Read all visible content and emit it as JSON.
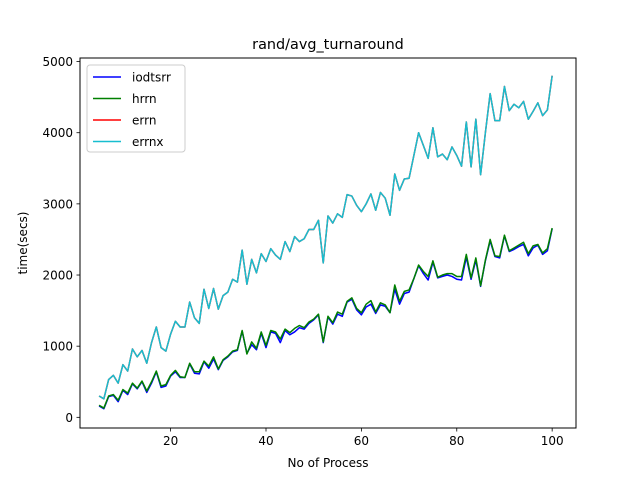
{
  "chart_data": {
    "type": "line",
    "title": "rand/avg_turnaround",
    "xlabel": "No of Process",
    "ylabel": "time(secs)",
    "xlim": [
      1,
      105
    ],
    "ylim": [
      -150,
      5050
    ],
    "xticks": [
      20,
      40,
      60,
      80,
      100
    ],
    "yticks": [
      0,
      1000,
      2000,
      3000,
      4000,
      5000
    ],
    "grid": false,
    "legend_position": "top-left",
    "x": [
      5,
      6,
      7,
      8,
      9,
      10,
      11,
      12,
      13,
      14,
      15,
      16,
      17,
      18,
      19,
      20,
      21,
      22,
      23,
      24,
      25,
      26,
      27,
      28,
      29,
      30,
      31,
      32,
      33,
      34,
      35,
      36,
      37,
      38,
      39,
      40,
      41,
      42,
      43,
      44,
      45,
      46,
      47,
      48,
      49,
      50,
      51,
      52,
      53,
      54,
      55,
      56,
      57,
      58,
      59,
      60,
      61,
      62,
      63,
      64,
      65,
      66,
      67,
      68,
      69,
      70,
      71,
      72,
      73,
      74,
      75,
      76,
      77,
      78,
      79,
      80,
      81,
      82,
      83,
      84,
      85,
      86,
      87,
      88,
      89,
      90,
      91,
      92,
      93,
      94,
      95,
      96,
      97,
      98,
      99,
      100
    ],
    "series": [
      {
        "name": "iodtsrr",
        "color": "#0000ff",
        "values": [
          160,
          120,
          290,
          310,
          220,
          380,
          320,
          470,
          400,
          500,
          350,
          480,
          640,
          420,
          440,
          580,
          640,
          560,
          560,
          750,
          620,
          610,
          780,
          690,
          820,
          670,
          800,
          850,
          920,
          940,
          1210,
          900,
          1020,
          950,
          1180,
          980,
          1200,
          1180,
          1050,
          1220,
          1160,
          1200,
          1260,
          1240,
          1320,
          1370,
          1440,
          1050,
          1410,
          1310,
          1450,
          1420,
          1620,
          1660,
          1510,
          1440,
          1550,
          1590,
          1460,
          1580,
          1560,
          1470,
          1800,
          1590,
          1740,
          1760,
          1950,
          2130,
          2020,
          1930,
          2180,
          1960,
          1980,
          2000,
          1980,
          1940,
          1930,
          2250,
          1940,
          2210,
          1840,
          2200,
          2480,
          2260,
          2240,
          2550,
          2330,
          2360,
          2400,
          2430,
          2270,
          2380,
          2420,
          2290,
          2340,
          2650
        ]
      },
      {
        "name": "hrrn",
        "color": "#008000",
        "values": [
          170,
          130,
          300,
          320,
          240,
          390,
          340,
          480,
          410,
          510,
          370,
          500,
          650,
          440,
          460,
          590,
          660,
          570,
          560,
          760,
          640,
          640,
          790,
          720,
          850,
          680,
          810,
          860,
          930,
          950,
          1220,
          890,
          1060,
          970,
          1200,
          1010,
          1220,
          1200,
          1100,
          1240,
          1190,
          1250,
          1290,
          1260,
          1340,
          1380,
          1450,
          1060,
          1420,
          1330,
          1480,
          1450,
          1630,
          1680,
          1530,
          1470,
          1590,
          1640,
          1480,
          1610,
          1580,
          1470,
          1860,
          1630,
          1770,
          1790,
          1950,
          2140,
          2050,
          1980,
          2200,
          1970,
          2000,
          2020,
          2020,
          1980,
          1980,
          2290,
          1960,
          2240,
          1850,
          2210,
          2500,
          2270,
          2260,
          2560,
          2340,
          2380,
          2420,
          2460,
          2300,
          2410,
          2430,
          2310,
          2370,
          2660
        ]
      },
      {
        "name": "errn",
        "color": "#ff0000",
        "values": [
          300,
          260,
          530,
          590,
          480,
          740,
          650,
          960,
          850,
          940,
          760,
          1050,
          1270,
          980,
          930,
          1170,
          1350,
          1270,
          1270,
          1620,
          1400,
          1320,
          1800,
          1530,
          1810,
          1520,
          1710,
          1760,
          1940,
          1900,
          2350,
          1870,
          2220,
          2030,
          2300,
          2190,
          2370,
          2280,
          2220,
          2470,
          2330,
          2540,
          2470,
          2510,
          2640,
          2640,
          2770,
          2170,
          2830,
          2730,
          2860,
          2810,
          3130,
          3110,
          2980,
          2890,
          3000,
          3140,
          2910,
          3160,
          3080,
          2840,
          3420,
          3190,
          3350,
          3360,
          3680,
          4000,
          3820,
          3640,
          4070,
          3660,
          3700,
          3620,
          3800,
          3680,
          3530,
          4150,
          3520,
          4190,
          3410,
          4000,
          4550,
          4170,
          4170,
          4650,
          4310,
          4400,
          4350,
          4440,
          4190,
          4300,
          4420,
          4240,
          4320,
          4800
        ]
      },
      {
        "name": "errnx",
        "color": "#17becf",
        "values": [
          300,
          260,
          530,
          590,
          480,
          740,
          650,
          960,
          850,
          940,
          760,
          1050,
          1270,
          980,
          930,
          1170,
          1350,
          1270,
          1270,
          1620,
          1400,
          1320,
          1800,
          1530,
          1810,
          1520,
          1710,
          1760,
          1940,
          1900,
          2350,
          1870,
          2220,
          2030,
          2300,
          2190,
          2370,
          2280,
          2220,
          2470,
          2330,
          2540,
          2470,
          2510,
          2640,
          2640,
          2770,
          2170,
          2830,
          2730,
          2860,
          2810,
          3130,
          3110,
          2980,
          2890,
          3000,
          3140,
          2910,
          3160,
          3080,
          2840,
          3420,
          3190,
          3350,
          3360,
          3680,
          4000,
          3820,
          3640,
          4070,
          3660,
          3700,
          3620,
          3800,
          3680,
          3530,
          4150,
          3520,
          4190,
          3410,
          4000,
          4550,
          4170,
          4170,
          4650,
          4310,
          4400,
          4350,
          4440,
          4190,
          4300,
          4420,
          4240,
          4320,
          4800
        ]
      }
    ]
  }
}
